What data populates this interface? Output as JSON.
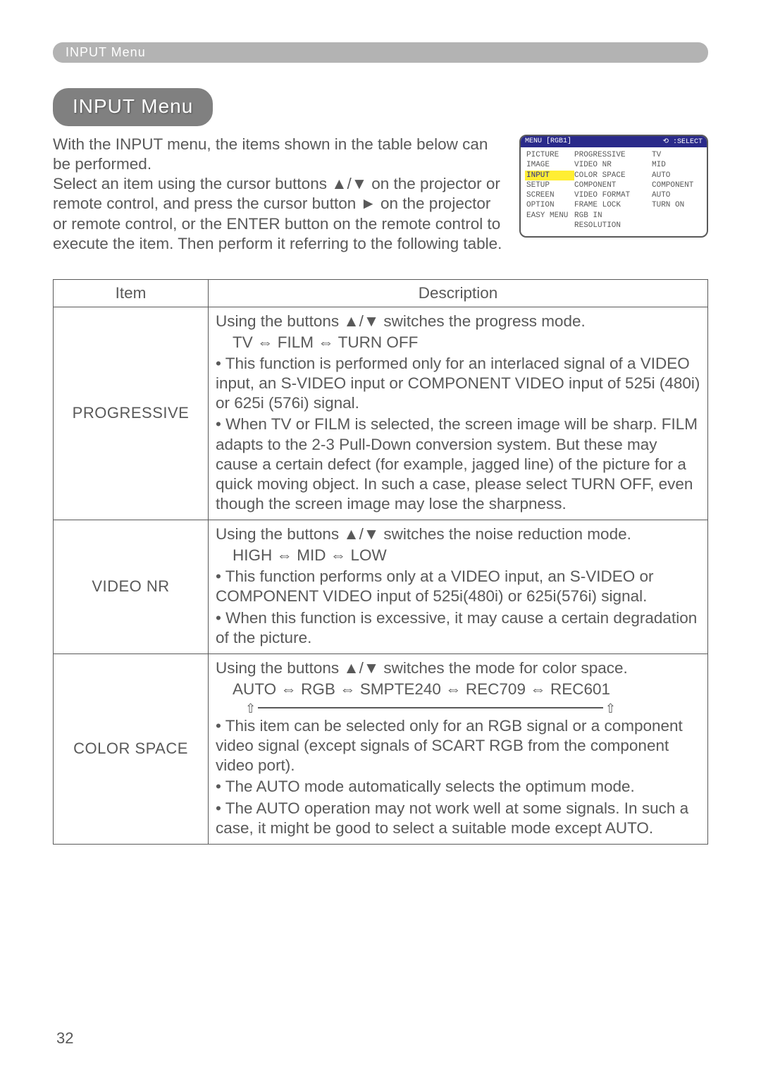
{
  "topbar": {
    "label": "INPUT Menu"
  },
  "pill": {
    "label": "INPUT Menu"
  },
  "intro": {
    "p1": "With the INPUT menu, the items shown in the table below can be performed.",
    "p2": "Select an item using the cursor buttons ▲/▼ on the projector or remote control, and press the cursor button ► on the projector or remote control, or the ENTER button on the remote control to execute the item. Then perform it referring to the following table."
  },
  "osd": {
    "header_left": "MENU [RGB1]",
    "header_right": "⟲ :SELECT",
    "left_items": [
      "PICTURE",
      "IMAGE",
      "INPUT",
      "SETUP",
      "SCREEN",
      "OPTION",
      "EASY MENU"
    ],
    "highlight_index": 2,
    "mid_items": [
      "PROGRESSIVE",
      "VIDEO NR",
      "COLOR SPACE",
      "COMPONENT",
      "VIDEO FORMAT",
      "FRAME LOCK",
      "RGB IN",
      "RESOLUTION"
    ],
    "right_items": [
      "TV",
      "MID",
      "AUTO",
      "COMPONENT",
      "AUTO",
      "TURN ON",
      "",
      ""
    ]
  },
  "table": {
    "head_item": "Item",
    "head_desc": "Description",
    "rows": [
      {
        "item": "PROGRESSIVE",
        "l1": "Using the buttons ▲/▼ switches the progress mode.",
        "opts": "TV ⇔ FILM ⇔ TURN OFF",
        "l2": "• This function is performed only for an interlaced signal of a VIDEO input, an S-VIDEO input or COMPONENT VIDEO input of 525i (480i) or 625i (576i) signal.",
        "l3": "• When TV or FILM is selected, the screen image will be sharp. FILM adapts to the 2-3 Pull-Down conversion system. But these may cause a certain defect (for example, jagged line) of the picture for a quick moving object. In such a case, please select TURN OFF, even though the screen image may lose the sharpness."
      },
      {
        "item": "VIDEO NR",
        "l1": "Using the buttons ▲/▼ switches the noise reduction mode.",
        "opts": "HIGH ⇔ MID ⇔ LOW",
        "l2": "• This function performs only at a VIDEO input, an S-VIDEO or COMPONENT VIDEO input of 525i(480i) or 625i(576i) signal.",
        "l3": "• When this function is excessive, it may cause a certain degradation of the picture."
      },
      {
        "item": "COLOR SPACE",
        "l1": "Using the buttons ▲/▼ switches the mode for color space.",
        "opts": "AUTO ⇔ RGB ⇔ SMPTE240 ⇔ REC709 ⇔ REC601",
        "l2": "• This item can be selected only for an RGB signal or a component video signal (except signals of SCART RGB from the component video port).",
        "l3": "• The AUTO mode automatically selects the optimum mode.",
        "l4": "• The AUTO operation may not work well at some signals. In such a case, it might be good to select a suitable mode except AUTO."
      }
    ]
  },
  "page_number": "32"
}
